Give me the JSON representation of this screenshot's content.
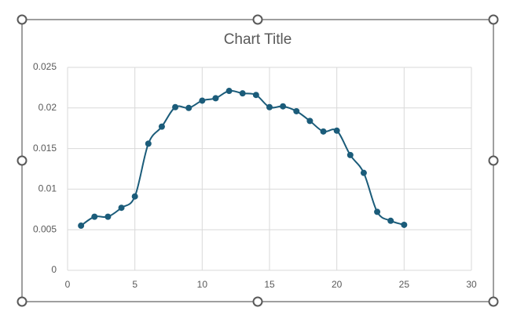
{
  "chart_data": {
    "type": "scatter",
    "title": "Chart Title",
    "x": [
      1,
      2,
      3,
      4,
      5,
      6,
      7,
      8,
      9,
      10,
      11,
      12,
      13,
      14,
      15,
      16,
      17,
      18,
      19,
      20,
      21,
      22,
      23,
      24,
      25
    ],
    "values": [
      0.0055,
      0.0066,
      0.0066,
      0.0077,
      0.0091,
      0.0156,
      0.0177,
      0.0201,
      0.02,
      0.0209,
      0.0212,
      0.0221,
      0.0218,
      0.0216,
      0.0201,
      0.0202,
      0.0196,
      0.0184,
      0.0171,
      0.0172,
      0.0142,
      0.012,
      0.0072,
      0.0061,
      0.0056
    ],
    "color": "#1b5c7a",
    "smooth": true,
    "grid": true,
    "xlim": [
      0,
      30
    ],
    "xticks": [
      0,
      5,
      10,
      15,
      20,
      25,
      30
    ],
    "ylim": [
      0,
      0.025
    ],
    "yticks": [
      0,
      0.005,
      0.01,
      0.015,
      0.02,
      0.025
    ]
  }
}
